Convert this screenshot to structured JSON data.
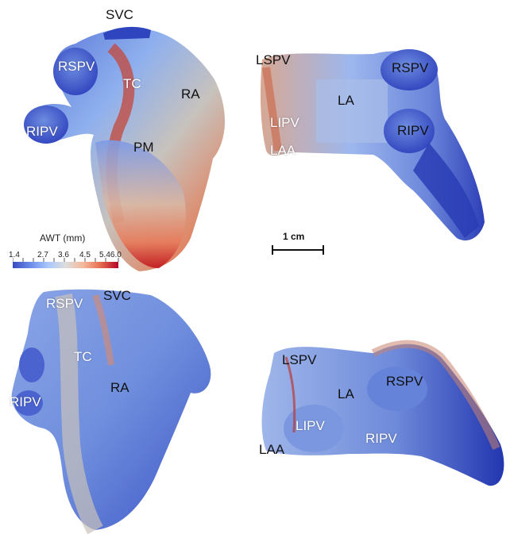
{
  "panels": {
    "top_left": {
      "labels": [
        "SVC",
        "RSPV",
        "TC",
        "RA",
        "RIPV",
        "PM"
      ]
    },
    "top_right": {
      "labels": [
        "LSPV",
        "RSPV",
        "LA",
        "LIPV",
        "RIPV",
        "LAA"
      ]
    },
    "bottom_left": {
      "labels": [
        "RSPV",
        "SVC",
        "TC",
        "RA",
        "RIPV"
      ]
    },
    "bottom_right": {
      "labels": [
        "LSPV",
        "LA",
        "RSPV",
        "LIPV",
        "RIPV",
        "LAA"
      ]
    }
  },
  "colorbar": {
    "title": "AWT (mm)",
    "ticks": [
      "1.4",
      "2.7",
      "3.6",
      "4.5",
      "5.46.0"
    ],
    "colors": [
      "#3b4cc0",
      "#6a8be8",
      "#aac7fd",
      "#dddddd",
      "#f6b89c",
      "#e56b4f",
      "#b40426"
    ]
  },
  "scale_bar": {
    "label": "1 cm"
  }
}
